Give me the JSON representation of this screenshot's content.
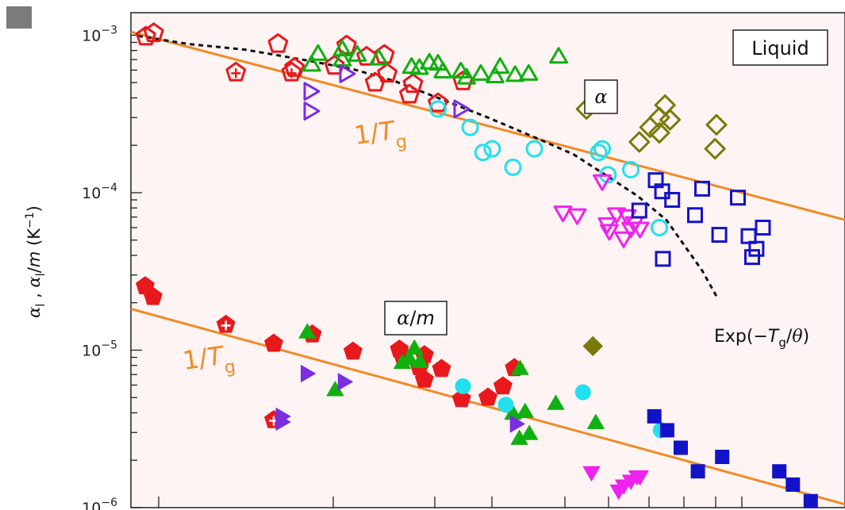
{
  "chart_data": {
    "type": "scatter",
    "title": "",
    "xlabel": "",
    "ylabel_parts": {
      "a": "α",
      "sub_l": "l",
      "sep": " , ",
      "b": "α",
      "sub_l2": "l",
      "slash": "/",
      "m": "m",
      "unit_open": " (K",
      "unit_exp": "−1",
      "unit_close": ")"
    },
    "yscale": "log",
    "ylim": [
      1e-06,
      0.00139
    ],
    "grid": false,
    "legend": "none",
    "y_ticks": [
      {
        "value": 0.001,
        "mantissa": "10",
        "exponent": "−3"
      },
      {
        "value": 0.0001,
        "mantissa": "10",
        "exponent": "−4"
      },
      {
        "value": 1e-05,
        "mantissa": "10",
        "exponent": "−5"
      },
      {
        "value": 1e-06,
        "mantissa": "10",
        "exponent": "−6"
      }
    ],
    "annotations": {
      "liquid": "Liquid",
      "alpha_box": "α",
      "alpha_m_box": {
        "a": "α",
        "slash": "/",
        "m": "m"
      },
      "inv_tg_upper": {
        "one": "1/",
        "T": "T",
        "g": "g"
      },
      "inv_tg_lower": {
        "one": "1/",
        "T": "T",
        "g": "g"
      },
      "exp_label": {
        "pre": "Exp(−",
        "T": "T",
        "g": "g",
        "slash": "/",
        "theta": "θ",
        "close": ")"
      }
    },
    "colors": {
      "red": "#e8191c",
      "green": "#10b010",
      "purple": "#7a2ee0",
      "cyan": "#22e0ee",
      "magenta": "#ee22ee",
      "blue": "#1212c8",
      "olive": "#7a7a0a",
      "orange": "#f08a28",
      "background": "#fdf4f3"
    },
    "lines": [
      {
        "id": "upper-fit",
        "style": "solid",
        "color": "#f08a28",
        "points": [
          [
            0,
            0.00105
          ],
          [
            1,
            6.72e-05
          ]
        ]
      },
      {
        "id": "lower-fit",
        "style": "solid",
        "color": "#f08a28",
        "points": [
          [
            0,
            1.83e-05
          ],
          [
            1,
            1.05e-06
          ]
        ]
      },
      {
        "id": "exp-curve",
        "style": "dashed",
        "color": "#111111",
        "points": [
          [
            0.01,
            0.00099
          ],
          [
            0.08,
            0.00088
          ],
          [
            0.16,
            0.00081
          ],
          [
            0.24,
            0.0007
          ],
          [
            0.31,
            0.00061
          ],
          [
            0.37,
            0.00051
          ],
          [
            0.43,
            0.0004
          ],
          [
            0.5,
            0.0003
          ],
          [
            0.57,
            0.00022
          ],
          [
            0.62,
            0.000175
          ],
          [
            0.67,
            0.000125
          ],
          [
            0.71,
            9.5e-05
          ],
          [
            0.75,
            6.7e-05
          ],
          [
            0.78,
            4.3e-05
          ],
          [
            0.8,
            3.2e-05
          ],
          [
            0.82,
            2.2e-05
          ]
        ]
      }
    ],
    "series": [
      {
        "marker": "pentagon",
        "filled": false,
        "color": "#e8191c",
        "x": [
          0.021,
          0.032,
          0.206,
          0.229,
          0.302,
          0.33,
          0.342,
          0.359,
          0.395
        ],
        "y": [
          0.00098,
          0.00103,
          0.00088,
          0.00062,
          0.00086,
          0.00073,
          0.0005,
          0.00057,
          0.00049
        ]
      },
      {
        "marker": "pentagon-cross",
        "filled": false,
        "color": "#e8191c",
        "x": [
          0.147,
          0.225
        ],
        "y": [
          0.00058,
          0.00058
        ]
      },
      {
        "marker": "pentagon",
        "filled": false,
        "color": "#e8191c",
        "x": [
          0.285,
          0.355,
          0.39,
          0.43,
          0.465
        ],
        "y": [
          0.00064,
          0.00075,
          0.00042,
          0.00037,
          0.00051
        ]
      },
      {
        "marker": "triangle-up",
        "filled": false,
        "color": "#10b010",
        "x": [
          0.262,
          0.253,
          0.296,
          0.296,
          0.317,
          0.347,
          0.393,
          0.404,
          0.418,
          0.43,
          0.437,
          0.462,
          0.47,
          0.49,
          0.51,
          0.517,
          0.538,
          0.557,
          0.599
        ],
        "y": [
          0.00075,
          0.00064,
          0.00069,
          0.0008,
          0.00074,
          0.0007,
          0.00062,
          0.00061,
          0.00066,
          0.00065,
          0.00058,
          0.00058,
          0.00053,
          0.00056,
          0.00054,
          0.00062,
          0.00055,
          0.00056,
          0.00072
        ]
      },
      {
        "marker": "triangle-right",
        "filled": false,
        "color": "#7a2ee0",
        "x": [
          0.25,
          0.25,
          0.3,
          0.46
        ],
        "y": [
          0.00044,
          0.00033,
          0.00057,
          0.00034
        ]
      },
      {
        "marker": "circle",
        "filled": false,
        "color": "#22e0ee",
        "x": [
          0.43,
          0.475,
          0.493,
          0.506,
          0.535,
          0.565,
          0.655,
          0.66,
          0.668,
          0.7,
          0.74
        ],
        "y": [
          0.00034,
          0.00026,
          0.00018,
          0.00019,
          0.000145,
          0.00019,
          0.00018,
          0.00019,
          0.00013,
          0.00014,
          6e-05
        ]
      },
      {
        "marker": "triangle-down",
        "filled": false,
        "color": "#ee22ee",
        "x": [
          0.605,
          0.625,
          0.667,
          0.68,
          0.695,
          0.705,
          0.7,
          0.69,
          0.67,
          0.713,
          0.66
        ],
        "y": [
          7.6e-05,
          7.3e-05,
          6.4e-05,
          7.4e-05,
          7.2e-05,
          6.5e-05,
          6e-05,
          5.2e-05,
          5.8e-05,
          6e-05,
          0.00012
        ]
      },
      {
        "marker": "square",
        "filled": false,
        "color": "#1212c8",
        "x": [
          0.712,
          0.745,
          0.735,
          0.758,
          0.744,
          0.79,
          0.8,
          0.85,
          0.865,
          0.876,
          0.87,
          0.885,
          0.824
        ],
        "y": [
          7.7e-05,
          3.8e-05,
          0.00012,
          9e-05,
          0.000102,
          7.2e-05,
          0.000106,
          9.3e-05,
          5.3e-05,
          4.4e-05,
          3.9e-05,
          6e-05,
          5.4e-05
        ]
      },
      {
        "marker": "diamond",
        "filled": false,
        "color": "#7a7a0a",
        "x": [
          0.638,
          0.712,
          0.727,
          0.74,
          0.748,
          0.74,
          0.82,
          0.818,
          0.755
        ],
        "y": [
          0.00034,
          0.00021,
          0.00026,
          0.0003,
          0.00036,
          0.00024,
          0.00027,
          0.00019,
          0.00029
        ]
      },
      {
        "marker": "pentagon",
        "filled": true,
        "color": "#e8191c",
        "x": [
          0.02,
          0.031,
          0.2,
          0.254,
          0.311,
          0.376,
          0.38,
          0.404,
          0.411,
          0.411,
          0.435,
          0.463,
          0.5,
          0.521,
          0.537
        ],
        "y": [
          2.55e-05,
          2.18e-05,
          1.1e-05,
          1.26e-05,
          9.8e-06,
          1.01e-05,
          9.3e-06,
          7.8e-06,
          9.3e-06,
          6.5e-06,
          7.6e-06,
          4.9e-06,
          5e-06,
          5.9e-06,
          7.7e-06
        ]
      },
      {
        "marker": "pentagon-cross",
        "filled": true,
        "color": "#e8191c",
        "x": [
          0.133,
          0.2
        ],
        "y": [
          1.45e-05,
          3.6e-06
        ]
      },
      {
        "marker": "triangle-up",
        "filled": true,
        "color": "#10b010",
        "x": [
          0.247,
          0.286,
          0.38,
          0.397,
          0.39,
          0.405,
          0.535,
          0.544,
          0.552,
          0.558,
          0.595,
          0.651,
          0.545
        ],
        "y": [
          1.28e-05,
          5.5e-06,
          8.2e-06,
          1.01e-05,
          8.7e-06,
          8.3e-06,
          3.9e-06,
          2.7e-06,
          4e-06,
          2.9e-06,
          4.5e-06,
          3.4e-06,
          7.5e-06
        ]
      },
      {
        "marker": "triangle-right",
        "filled": true,
        "color": "#7a2ee0",
        "x": [
          0.21,
          0.21,
          0.245,
          0.297,
          0.538
        ],
        "y": [
          3.8e-06,
          3.5e-06,
          7.1e-06,
          6.3e-06,
          3.4e-06
        ]
      },
      {
        "marker": "circle",
        "filled": true,
        "color": "#22e0ee",
        "x": [
          0.465,
          0.525,
          0.633,
          0.742
        ],
        "y": [
          5.9e-06,
          4.5e-06,
          5.4e-06,
          3.1e-06
        ]
      },
      {
        "marker": "triangle-down",
        "filled": true,
        "color": "#ee22ee",
        "x": [
          0.645,
          0.683,
          0.69,
          0.7,
          0.709,
          0.713
        ],
        "y": [
          1.7e-06,
          1.3e-06,
          1.4e-06,
          1.5e-06,
          1.6e-06,
          1.6e-06
        ]
      },
      {
        "marker": "square",
        "filled": true,
        "color": "#1212c8",
        "x": [
          0.733,
          0.751,
          0.77,
          0.794,
          0.828,
          0.908,
          0.927,
          0.952
        ],
        "y": [
          3.8e-06,
          3.1e-06,
          2.4e-06,
          1.7e-06,
          2.1e-06,
          1.7e-06,
          1.4e-06,
          1.1e-06
        ]
      },
      {
        "marker": "diamond",
        "filled": true,
        "color": "#7a7a0a",
        "x": [
          0.647
        ],
        "y": [
          1.06e-05
        ]
      }
    ]
  }
}
